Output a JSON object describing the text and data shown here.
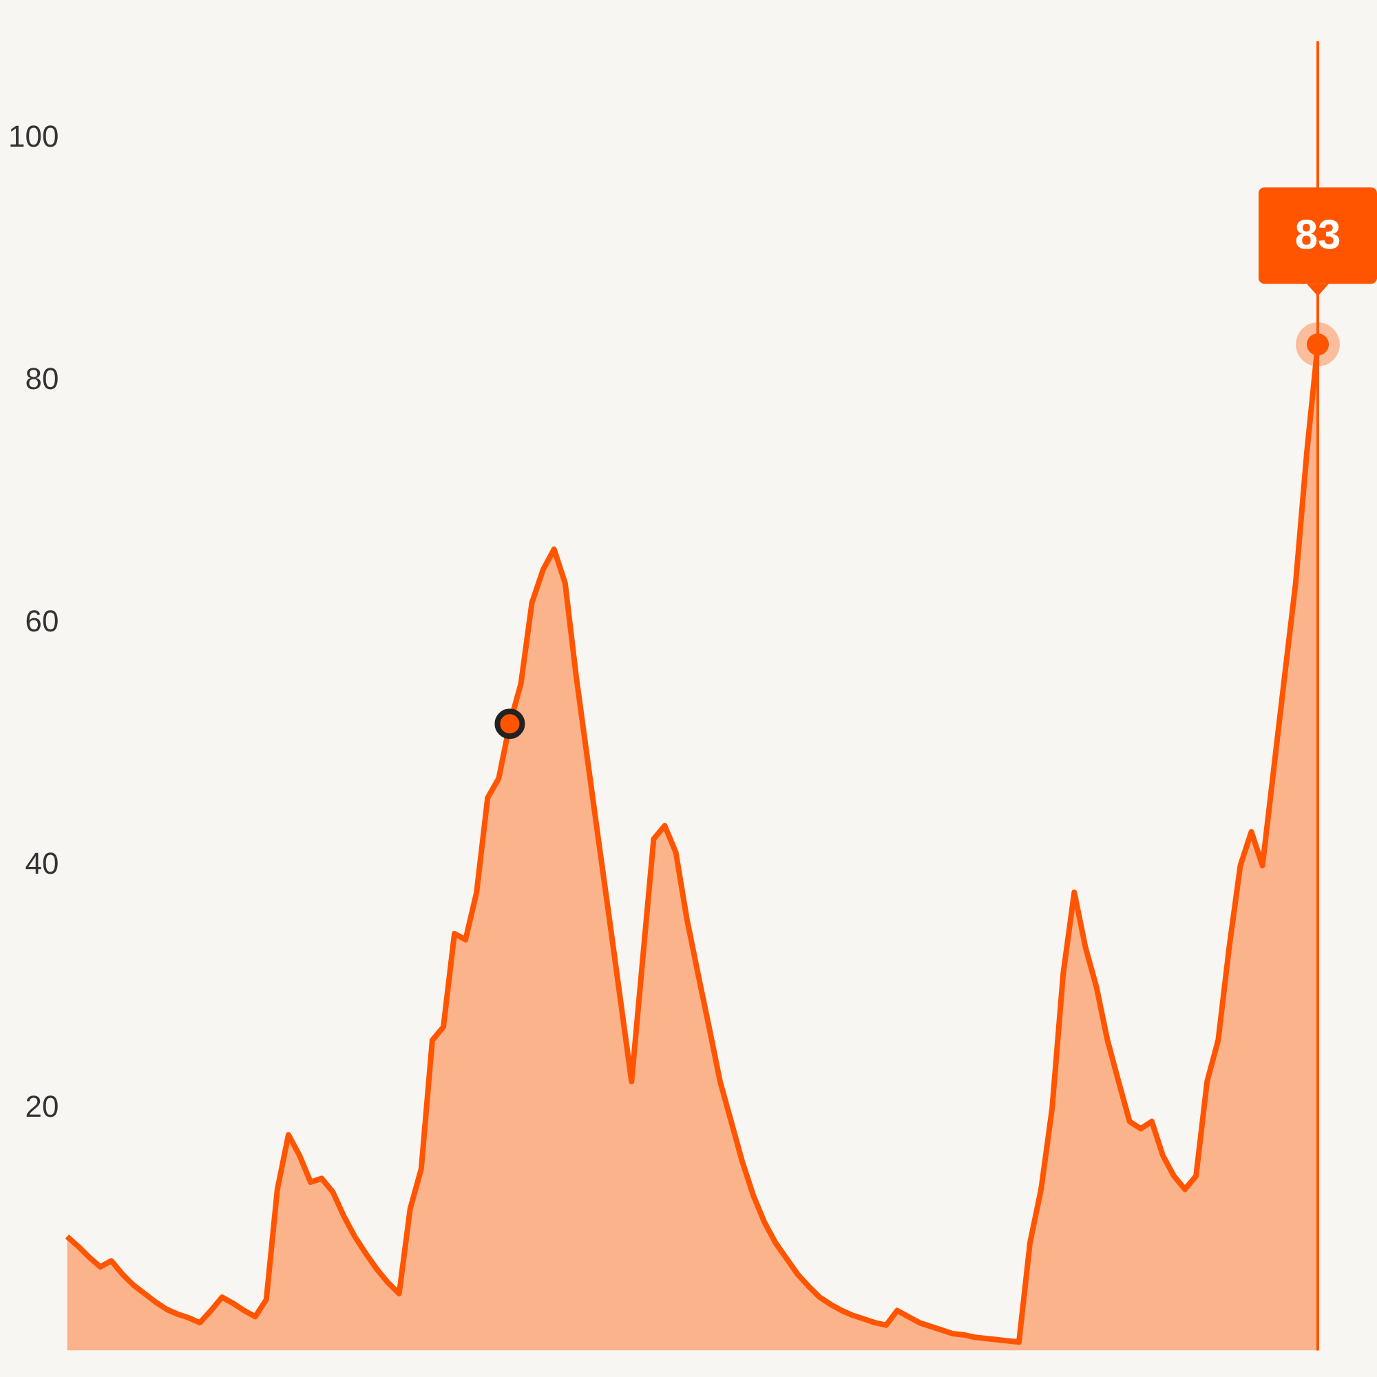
{
  "chart_data": {
    "type": "area",
    "categories": [
      null,
      null,
      null,
      null,
      null,
      null,
      null,
      null,
      null,
      null,
      null,
      null,
      null,
      null,
      null,
      null,
      null,
      null,
      null,
      null,
      null,
      null,
      null,
      null,
      null,
      null,
      null,
      null,
      null,
      null,
      null,
      null,
      null,
      null,
      null,
      null,
      null,
      null,
      null,
      null,
      null,
      null,
      null,
      null,
      null,
      null,
      null,
      null,
      null,
      null,
      null,
      null,
      null,
      null,
      null,
      null,
      null,
      null,
      null,
      null,
      null,
      null,
      null,
      null,
      null,
      null,
      null,
      null,
      null,
      null,
      null,
      null,
      null,
      null,
      null,
      null,
      null,
      null,
      null,
      null,
      null,
      null,
      null,
      null,
      null,
      null,
      null,
      null,
      null,
      null,
      null,
      null,
      null,
      null,
      null,
      null,
      null,
      null,
      null,
      null,
      null,
      null,
      null,
      null,
      null,
      null,
      null,
      null,
      null,
      null,
      null,
      null,
      null,
      null
    ],
    "series": [
      {
        "color": "#ff5500",
        "values": [
          9.4,
          8.6,
          7.7,
          6.9,
          7.4,
          6.3,
          5.4,
          4.7,
          4.0,
          3.4,
          3.0,
          2.7,
          2.3,
          3.3,
          4.4,
          3.9,
          3.3,
          2.8,
          4.2,
          13.3,
          17.8,
          16.1,
          13.9,
          14.2,
          13.1,
          11.1,
          9.4,
          8.0,
          6.7,
          5.6,
          4.7,
          11.7,
          15.0,
          25.6,
          26.7,
          34.4,
          33.9,
          37.8,
          45.6,
          47.2,
          51.7,
          55.0,
          61.7,
          64.4,
          66.1,
          63.3,
          55.6,
          48.9,
          42.2,
          35.6,
          28.9,
          22.2,
          32.2,
          42.2,
          43.3,
          41.1,
          35.6,
          31.1,
          26.7,
          22.2,
          18.9,
          15.6,
          12.8,
          10.6,
          8.9,
          7.6,
          6.3,
          5.3,
          4.4,
          3.8,
          3.3,
          2.9,
          2.6,
          2.3,
          2.1,
          3.3,
          2.8,
          2.3,
          2.0,
          1.7,
          1.4,
          1.3,
          1.1,
          1.0,
          0.9,
          0.8,
          0.7,
          8.9,
          13.3,
          20.0,
          31.1,
          37.8,
          33.3,
          30.0,
          25.6,
          22.2,
          18.9,
          18.3,
          18.9,
          16.1,
          14.4,
          13.3,
          14.4,
          22.2,
          25.6,
          33.3,
          40.0,
          42.8,
          40.0,
          47.8,
          55.6,
          63.3,
          74.0,
          83
        ]
      },
      {
        "type": "scatter",
        "color": "#222222",
        "values": [
          null,
          null,
          null,
          null,
          null,
          null,
          null,
          null,
          null,
          null,
          null,
          null,
          null,
          null,
          null,
          null,
          null,
          null,
          null,
          null,
          null,
          null,
          null,
          null,
          null,
          null,
          null,
          null,
          null,
          null,
          null,
          null,
          null,
          null,
          null,
          null,
          null,
          null,
          null,
          null,
          51.7,
          null,
          null,
          null,
          null,
          null,
          null,
          null,
          null,
          null,
          null,
          null,
          null,
          null,
          null,
          null,
          null,
          null,
          null,
          null,
          null,
          null,
          null,
          null,
          null,
          null,
          null,
          null,
          null,
          null,
          null,
          null,
          null,
          null,
          null,
          null,
          null,
          null,
          null,
          null,
          null,
          null,
          null,
          null,
          null,
          null,
          null,
          null,
          null,
          null,
          null,
          null,
          null,
          null,
          null,
          null,
          null,
          null,
          null,
          null,
          null,
          null,
          null,
          null,
          null,
          null,
          null,
          null,
          null,
          null,
          null,
          null,
          null,
          null
        ]
      }
    ],
    "ylim": [
      0,
      108
    ],
    "yticks": [
      20,
      40,
      60,
      80,
      100
    ],
    "tick_labels": "y",
    "annotations": [
      {
        "text": "83",
        "y": 83
      }
    ]
  }
}
